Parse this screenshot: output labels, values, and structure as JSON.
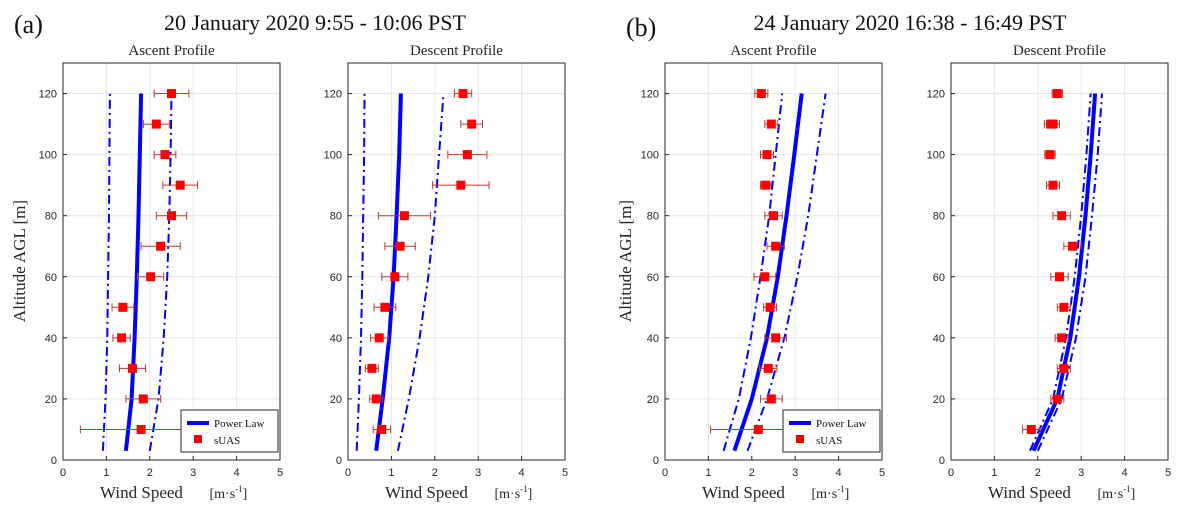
{
  "chart_data": [
    {
      "type": "line",
      "panel_label": "(a)",
      "date_title": "20 January 2020 9:55 - 10:06 PST",
      "title": "Ascent Profile",
      "xlabel": "Wind Speed",
      "ylabel": "Altitude AGL [m]",
      "xlim": [
        0,
        5
      ],
      "ylim": [
        0,
        130
      ],
      "xticks": [
        0,
        1,
        2,
        3,
        4,
        5
      ],
      "yticks": [
        0,
        20,
        40,
        60,
        80,
        100,
        120
      ],
      "series": [
        {
          "name": "Power Law",
          "style": "solid",
          "x": [
            1.45,
            1.58,
            1.65,
            1.7,
            1.74,
            1.77,
            1.8
          ],
          "y": [
            3,
            20,
            40,
            60,
            80,
            100,
            120
          ]
        },
        {
          "name": "Power Law lower bound",
          "style": "dashdot",
          "x": [
            0.92,
            0.98,
            1.02,
            1.04,
            1.06,
            1.07,
            1.08
          ],
          "y": [
            3,
            20,
            40,
            60,
            80,
            100,
            120
          ]
        },
        {
          "name": "Power Law upper bound",
          "style": "dashdot",
          "x": [
            2.0,
            2.2,
            2.32,
            2.4,
            2.45,
            2.48,
            2.5
          ],
          "y": [
            3,
            20,
            40,
            60,
            80,
            100,
            120
          ]
        },
        {
          "name": "sUAS",
          "style": "markers",
          "x": [
            1.8,
            1.85,
            1.6,
            1.35,
            1.38,
            2.02,
            2.25,
            2.5,
            2.7,
            2.35,
            2.15,
            2.5
          ],
          "y": [
            10,
            20,
            30,
            40,
            50,
            60,
            70,
            80,
            90,
            100,
            110,
            120
          ],
          "xerr": [
            1.4,
            0.4,
            0.3,
            0.2,
            0.25,
            0.3,
            0.45,
            0.35,
            0.4,
            0.25,
            0.3,
            0.4
          ]
        }
      ],
      "legend": [
        "Power Law",
        "sUAS"
      ]
    },
    {
      "type": "line",
      "title": "Descent Profile",
      "xlabel": "Wind Speed",
      "xlim": [
        0,
        5
      ],
      "ylim": [
        0,
        130
      ],
      "xticks": [
        0,
        1,
        2,
        3,
        4,
        5
      ],
      "yticks": [
        0,
        20,
        40,
        60,
        80,
        100,
        120
      ],
      "series": [
        {
          "name": "Power Law",
          "style": "solid",
          "x": [
            0.65,
            0.8,
            0.95,
            1.05,
            1.12,
            1.18,
            1.22
          ],
          "y": [
            3,
            20,
            40,
            60,
            80,
            100,
            120
          ]
        },
        {
          "name": "Power Law lower bound",
          "style": "dashdot",
          "x": [
            0.2,
            0.25,
            0.3,
            0.33,
            0.35,
            0.37,
            0.38
          ],
          "y": [
            3,
            20,
            40,
            60,
            80,
            100,
            120
          ]
        },
        {
          "name": "Power Law upper bound",
          "style": "dashdot",
          "x": [
            1.15,
            1.4,
            1.65,
            1.85,
            2.0,
            2.1,
            2.2
          ],
          "y": [
            3,
            20,
            40,
            60,
            80,
            100,
            120
          ]
        },
        {
          "name": "sUAS",
          "style": "markers",
          "x": [
            0.78,
            0.65,
            0.55,
            0.72,
            0.85,
            1.08,
            1.2,
            1.3,
            2.6,
            2.75,
            2.85,
            2.65
          ],
          "y": [
            10,
            20,
            30,
            40,
            50,
            60,
            70,
            80,
            90,
            100,
            110,
            120
          ],
          "xerr": [
            0.2,
            0.15,
            0.15,
            0.2,
            0.25,
            0.3,
            0.35,
            0.6,
            0.65,
            0.45,
            0.25,
            0.2
          ]
        }
      ]
    },
    {
      "type": "line",
      "panel_label": "(b)",
      "date_title": "24 January 2020 16:38 - 16:49 PST",
      "title": "Ascent Profile",
      "xlabel": "Wind Speed",
      "ylabel": "Altitude AGL [m]",
      "xlim": [
        0,
        5
      ],
      "ylim": [
        0,
        130
      ],
      "xticks": [
        0,
        1,
        2,
        3,
        4,
        5
      ],
      "yticks": [
        0,
        20,
        40,
        60,
        80,
        100,
        120
      ],
      "series": [
        {
          "name": "Power Law",
          "style": "solid",
          "x": [
            1.6,
            2.0,
            2.35,
            2.6,
            2.8,
            2.98,
            3.15
          ],
          "y": [
            3,
            20,
            40,
            60,
            80,
            100,
            120
          ]
        },
        {
          "name": "Power Law lower bound",
          "style": "dashdot",
          "x": [
            1.35,
            1.7,
            1.98,
            2.2,
            2.4,
            2.55,
            2.7
          ],
          "y": [
            3,
            20,
            40,
            60,
            80,
            100,
            120
          ]
        },
        {
          "name": "Power Law upper bound",
          "style": "dashdot",
          "x": [
            1.9,
            2.35,
            2.75,
            3.05,
            3.3,
            3.5,
            3.7
          ],
          "y": [
            3,
            20,
            40,
            60,
            80,
            100,
            120
          ]
        },
        {
          "name": "sUAS",
          "style": "markers",
          "x": [
            2.15,
            2.45,
            2.38,
            2.55,
            2.42,
            2.3,
            2.55,
            2.5,
            2.32,
            2.35,
            2.45,
            2.22
          ],
          "y": [
            10,
            20,
            30,
            40,
            50,
            60,
            70,
            80,
            90,
            100,
            110,
            120
          ],
          "xerr": [
            1.1,
            0.25,
            0.2,
            0.25,
            0.15,
            0.25,
            0.2,
            0.2,
            0.12,
            0.15,
            0.15,
            0.15
          ]
        }
      ],
      "legend": [
        "Power Law",
        "sUAS"
      ]
    },
    {
      "type": "line",
      "title": "Descent Profile",
      "xlabel": "Wind Speed",
      "xlim": [
        0,
        5
      ],
      "ylim": [
        0,
        130
      ],
      "xticks": [
        0,
        1,
        2,
        3,
        4,
        5
      ],
      "yticks": [
        0,
        20,
        40,
        60,
        80,
        100,
        120
      ],
      "series": [
        {
          "name": "Power Law",
          "style": "solid",
          "x": [
            1.9,
            2.45,
            2.75,
            2.95,
            3.1,
            3.22,
            3.32
          ],
          "y": [
            3,
            20,
            40,
            60,
            80,
            100,
            120
          ]
        },
        {
          "name": "Power Law lower bound",
          "style": "dashdot",
          "x": [
            1.82,
            2.35,
            2.65,
            2.85,
            3.0,
            3.12,
            3.22
          ],
          "y": [
            3,
            20,
            40,
            60,
            80,
            100,
            120
          ]
        },
        {
          "name": "Power Law upper bound",
          "style": "dashdot",
          "x": [
            2.0,
            2.55,
            2.88,
            3.1,
            3.25,
            3.38,
            3.48
          ],
          "y": [
            3,
            20,
            40,
            60,
            80,
            100,
            120
          ]
        },
        {
          "name": "sUAS",
          "style": "markers",
          "x": [
            1.85,
            2.45,
            2.6,
            2.55,
            2.6,
            2.5,
            2.8,
            2.55,
            2.35,
            2.28,
            2.3,
            2.35,
            2.45
          ],
          "y": [
            10,
            20,
            30,
            40,
            50,
            60,
            70,
            80,
            90,
            100,
            110,
            110,
            120
          ],
          "xerr": [
            0.2,
            0.15,
            0.15,
            0.15,
            0.15,
            0.2,
            0.2,
            0.2,
            0.15,
            0.12,
            0.15,
            0.15,
            0.12
          ]
        }
      ]
    }
  ],
  "units": {
    "prefix": "[m",
    "dot": "·",
    "base": "s",
    "exp": "-1",
    "suffix": "]"
  },
  "colors": {
    "line": "#0000ff",
    "marker": "#ff0000",
    "errorbar": "#c0392b"
  }
}
